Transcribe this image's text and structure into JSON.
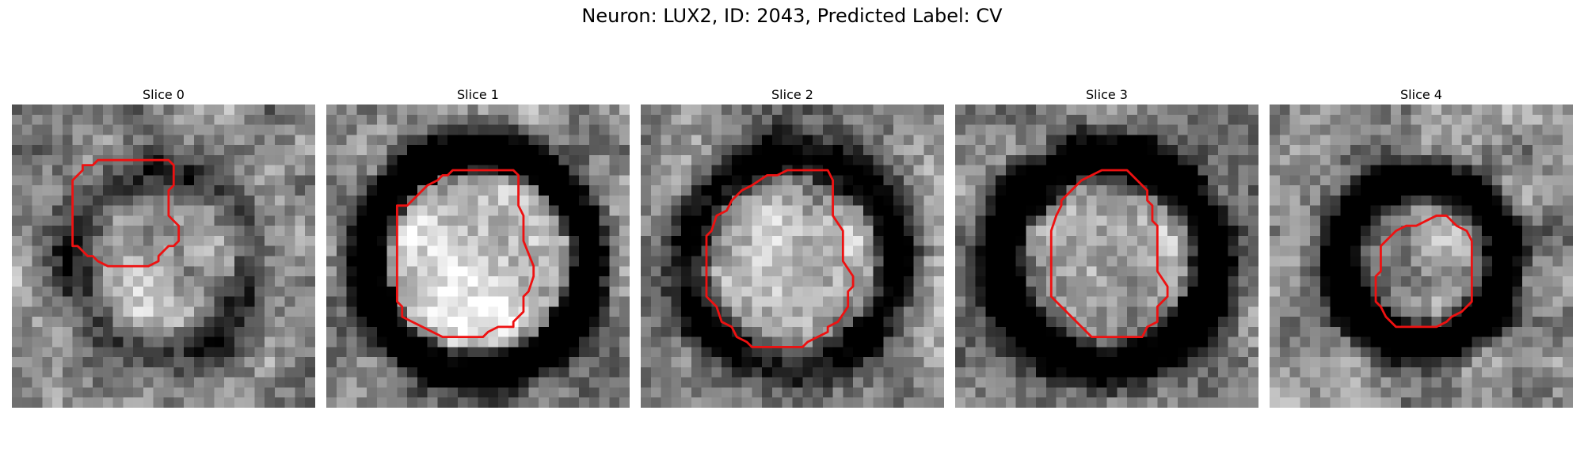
{
  "figure": {
    "title": "Neuron: LUX2, ID: 2043, Predicted Label: CV"
  },
  "colors": {
    "contour": "#ee1111",
    "background": "#ffffff"
  },
  "panels": [
    {
      "title": "Slice 0",
      "ring_radius": 0.3,
      "ring_width": 0.075,
      "ring_dark": 0.35,
      "inner_bright": 0.12,
      "seed": 11,
      "contour": [
        [
          9.5,
          5.5
        ],
        [
          15.5,
          5.5
        ],
        [
          16,
          6
        ],
        [
          16,
          8
        ],
        [
          15.5,
          8.5
        ],
        [
          15.5,
          11
        ],
        [
          16.5,
          12
        ],
        [
          16.5,
          13.5
        ],
        [
          16,
          14
        ],
        [
          15.5,
          14
        ],
        [
          14.5,
          15
        ],
        [
          14.5,
          15.5
        ],
        [
          13.5,
          16
        ],
        [
          9.5,
          16
        ],
        [
          8.5,
          15.5
        ],
        [
          8,
          15
        ],
        [
          7.5,
          15
        ],
        [
          6.5,
          14
        ],
        [
          6,
          14
        ],
        [
          6,
          7.5
        ],
        [
          7,
          6.5
        ],
        [
          7,
          6
        ],
        [
          8,
          6
        ],
        [
          8.5,
          5.5
        ]
      ]
    },
    {
      "title": "Slice 1",
      "ring_radius": 0.37,
      "ring_width": 0.07,
      "ring_dark": 0.9,
      "inner_bright": 0.3,
      "seed": 23,
      "contour": [
        [
          12.5,
          6.5
        ],
        [
          18.5,
          6.5
        ],
        [
          19,
          7
        ],
        [
          19,
          10
        ],
        [
          19.5,
          11
        ],
        [
          19.5,
          13.5
        ],
        [
          20.5,
          16
        ],
        [
          20.5,
          17
        ],
        [
          20,
          18.5
        ],
        [
          19.5,
          19
        ],
        [
          19.5,
          20.5
        ],
        [
          18.5,
          21.5
        ],
        [
          18.5,
          22
        ],
        [
          17,
          22
        ],
        [
          16,
          22.5
        ],
        [
          15.5,
          23
        ],
        [
          11.5,
          23
        ],
        [
          10.5,
          22.5
        ],
        [
          9.5,
          22
        ],
        [
          8.5,
          21.5
        ],
        [
          7.5,
          21
        ],
        [
          7.5,
          20
        ],
        [
          7,
          19.5
        ],
        [
          7,
          10
        ],
        [
          7.5,
          10
        ],
        [
          8,
          10
        ],
        [
          10,
          8
        ],
        [
          11,
          7.5
        ],
        [
          11.5,
          7
        ],
        [
          12,
          7
        ]
      ]
    },
    {
      "title": "Slice 2",
      "ring_radius": 0.35,
      "ring_width": 0.075,
      "ring_dark": 0.6,
      "inner_bright": 0.15,
      "seed": 37,
      "contour": [
        [
          14.5,
          6.5
        ],
        [
          18.5,
          6.5
        ],
        [
          19,
          7.5
        ],
        [
          19,
          11
        ],
        [
          20,
          12.5
        ],
        [
          20,
          15.5
        ],
        [
          21,
          17
        ],
        [
          21,
          18
        ],
        [
          20.5,
          18.5
        ],
        [
          20.5,
          20
        ],
        [
          19.5,
          21.5
        ],
        [
          18.5,
          22
        ],
        [
          18.5,
          22.5
        ],
        [
          17.5,
          23
        ],
        [
          16.5,
          23.5
        ],
        [
          16,
          24
        ],
        [
          11,
          24
        ],
        [
          10.5,
          23.5
        ],
        [
          9.5,
          23
        ],
        [
          9,
          22
        ],
        [
          8,
          21.5
        ],
        [
          7.5,
          20
        ],
        [
          6.5,
          19
        ],
        [
          6.5,
          13
        ],
        [
          7,
          12.5
        ],
        [
          7.5,
          11
        ],
        [
          8.5,
          10.5
        ],
        [
          9,
          9.5
        ],
        [
          10,
          8.5
        ],
        [
          11,
          8
        ],
        [
          12.5,
          7
        ],
        [
          13.5,
          7
        ]
      ]
    },
    {
      "title": "Slice 3",
      "ring_radius": 0.35,
      "ring_width": 0.08,
      "ring_dark": 0.85,
      "inner_bright": 0.15,
      "seed": 53,
      "contour": [
        [
          14.5,
          6.5
        ],
        [
          17,
          6.5
        ],
        [
          18,
          7.5
        ],
        [
          18.5,
          8
        ],
        [
          19,
          8.5
        ],
        [
          19,
          9.5
        ],
        [
          19.5,
          10
        ],
        [
          19.5,
          11.5
        ],
        [
          20,
          12
        ],
        [
          20,
          16.5
        ],
        [
          21,
          18
        ],
        [
          21,
          19
        ],
        [
          20.5,
          19.5
        ],
        [
          20,
          20
        ],
        [
          20,
          21.5
        ],
        [
          19,
          22
        ],
        [
          18.5,
          23
        ],
        [
          13.5,
          23
        ],
        [
          12,
          21.5
        ],
        [
          10.5,
          20
        ],
        [
          9.5,
          19
        ],
        [
          9.5,
          12.5
        ],
        [
          10,
          11
        ],
        [
          10.5,
          10
        ],
        [
          10.5,
          9.5
        ],
        [
          11.5,
          8.5
        ],
        [
          12,
          8
        ],
        [
          12.5,
          7.5
        ],
        [
          13.5,
          7
        ]
      ]
    },
    {
      "title": "Slice 4",
      "ring_radius": 0.27,
      "ring_width": 0.07,
      "ring_dark": 0.95,
      "inner_bright": 0.05,
      "seed": 71,
      "contour": [
        [
          16.5,
          11
        ],
        [
          17.5,
          11
        ],
        [
          18.5,
          12
        ],
        [
          19.5,
          12.5
        ],
        [
          20,
          13.5
        ],
        [
          20,
          19.5
        ],
        [
          19,
          20.5
        ],
        [
          18,
          21
        ],
        [
          17.5,
          21.5
        ],
        [
          16.5,
          22
        ],
        [
          12.5,
          22
        ],
        [
          11.5,
          21
        ],
        [
          11,
          20
        ],
        [
          10.5,
          19.5
        ],
        [
          10.5,
          17
        ],
        [
          11,
          16.5
        ],
        [
          11,
          14
        ],
        [
          12,
          13
        ],
        [
          12.5,
          12.5
        ],
        [
          13.5,
          12
        ],
        [
          14.5,
          12
        ],
        [
          15.5,
          11.5
        ]
      ]
    }
  ]
}
